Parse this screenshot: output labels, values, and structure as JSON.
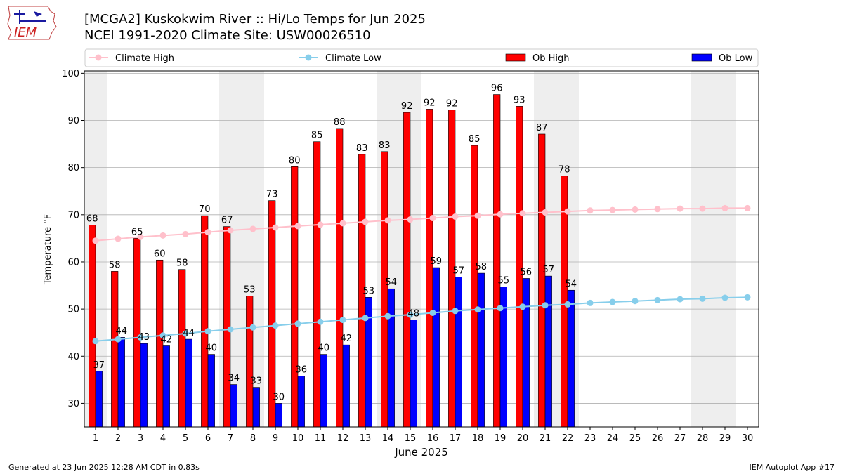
{
  "header": {
    "logo_text": "IEM",
    "title_line1": "[MCGA2] Kuskokwim River :: Hi/Lo Temps for Jun 2025",
    "title_line2": "NCEI 1991-2020 Climate Site: USW00026510"
  },
  "footer": {
    "generated": "Generated at 23 Jun 2025 12:28 AM CDT in 0.83s",
    "app": "IEM Autoplot App #17"
  },
  "colors": {
    "ob_high": "#ff0000",
    "ob_low": "#0000ff",
    "climate_high": "#ffc0cb",
    "climate_low": "#87ceeb",
    "weekend_band": "#eeeeee",
    "grid": "#b0b0b0"
  },
  "chart_data": {
    "type": "bar",
    "xlabel": "June 2025",
    "ylabel": "Temperature °F",
    "ylim": [
      25,
      100.5
    ],
    "yticks": [
      30,
      40,
      50,
      60,
      70,
      80,
      90,
      100
    ],
    "grid": "horizontal",
    "legend_position": "top",
    "categories": [
      "1",
      "2",
      "3",
      "4",
      "5",
      "6",
      "7",
      "8",
      "9",
      "10",
      "11",
      "12",
      "13",
      "14",
      "15",
      "16",
      "17",
      "18",
      "19",
      "20",
      "21",
      "22",
      "23",
      "24",
      "25",
      "26",
      "27",
      "28",
      "29",
      "30"
    ],
    "shaded_day_ranges": [
      [
        1,
        1
      ],
      [
        7,
        8
      ],
      [
        14,
        15
      ],
      [
        21,
        22
      ],
      [
        28,
        29
      ]
    ],
    "series": [
      {
        "name": "Climate High",
        "kind": "line",
        "values": [
          64.5,
          64.9,
          65.3,
          65.6,
          65.9,
          66.3,
          66.7,
          67.0,
          67.3,
          67.6,
          67.9,
          68.2,
          68.5,
          68.8,
          69.0,
          69.3,
          69.6,
          69.8,
          70.1,
          70.3,
          70.5,
          70.7,
          70.9,
          71.0,
          71.1,
          71.2,
          71.3,
          71.3,
          71.4,
          71.4
        ]
      },
      {
        "name": "Climate Low",
        "kind": "line",
        "values": [
          43.2,
          43.6,
          44.0,
          44.4,
          44.8,
          45.3,
          45.7,
          46.1,
          46.5,
          46.9,
          47.3,
          47.7,
          48.1,
          48.5,
          48.8,
          49.2,
          49.6,
          49.9,
          50.2,
          50.5,
          50.8,
          51.0,
          51.3,
          51.5,
          51.7,
          51.9,
          52.1,
          52.2,
          52.4,
          52.5
        ]
      },
      {
        "name": "Ob High",
        "kind": "bar",
        "values": [
          67.8,
          58.0,
          65.0,
          60.4,
          58.4,
          69.8,
          67.5,
          52.8,
          73.0,
          80.2,
          85.5,
          88.3,
          82.8,
          83.4,
          91.7,
          92.4,
          92.2,
          84.7,
          95.5,
          93.0,
          87.1,
          78.2,
          null,
          null,
          null,
          null,
          null,
          null,
          null,
          null
        ],
        "labels": [
          "68",
          "58",
          "65",
          "60",
          "58",
          "70",
          "67",
          "53",
          "73",
          "80",
          "85",
          "88",
          "83",
          "83",
          "92",
          "92",
          "92",
          "85",
          "96",
          "93",
          "87",
          "78",
          "",
          "",
          "",
          "",
          "",
          "",
          "",
          ""
        ]
      },
      {
        "name": "Ob Low",
        "kind": "bar",
        "values": [
          36.8,
          44.0,
          42.7,
          42.2,
          43.6,
          40.4,
          34.0,
          33.4,
          30.0,
          35.8,
          40.4,
          42.4,
          52.5,
          54.3,
          47.7,
          58.8,
          56.8,
          57.6,
          54.7,
          56.5,
          57.0,
          54.0,
          null,
          null,
          null,
          null,
          null,
          null,
          null,
          null
        ],
        "labels": [
          "37",
          "44",
          "43",
          "42",
          "44",
          "40",
          "34",
          "33",
          "30",
          "36",
          "40",
          "42",
          "53",
          "54",
          "48",
          "59",
          "57",
          "58",
          "55",
          "56",
          "57",
          "54",
          "",
          "",
          "",
          "",
          "",
          "",
          "",
          ""
        ]
      }
    ]
  }
}
